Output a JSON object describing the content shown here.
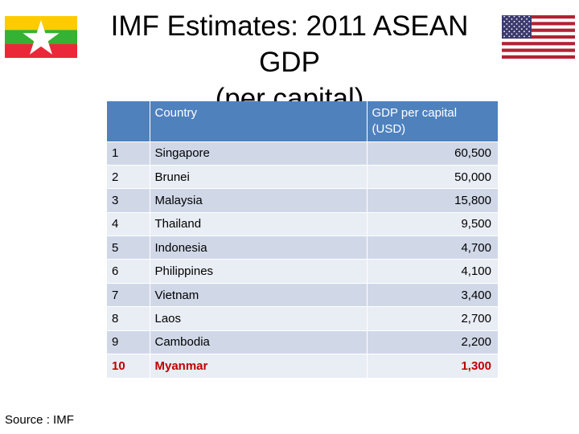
{
  "title_lines": [
    "IMF Estimates: 2011 ASEAN GDP",
    "(per capital)"
  ],
  "table": {
    "headers": [
      "",
      "Country",
      "GDP per capital\n(USD)"
    ],
    "header_gdp_line1": "GDP per capital",
    "header_gdp_line2": "(USD)",
    "rows": [
      {
        "rank": "1",
        "country": "Singapore",
        "gdp": "60,500"
      },
      {
        "rank": "2",
        "country": "Brunei",
        "gdp": "50,000"
      },
      {
        "rank": "3",
        "country": "Malaysia",
        "gdp": "15,800"
      },
      {
        "rank": "4",
        "country": "Thailand",
        "gdp": "9,500"
      },
      {
        "rank": "5",
        "country": "Indonesia",
        "gdp": "4,700"
      },
      {
        "rank": "6",
        "country": "Philippines",
        "gdp": "4,100"
      },
      {
        "rank": "7",
        "country": "Vietnam",
        "gdp": "3,400"
      },
      {
        "rank": "8",
        "country": "Laos",
        "gdp": "2,700"
      },
      {
        "rank": "9",
        "country": "Cambodia",
        "gdp": "2,200"
      },
      {
        "rank": "10",
        "country": "Myanmar",
        "gdp": "1,300"
      }
    ],
    "highlight_row": 9,
    "highlight_color": "#c00000",
    "header_color": "#4f81bd"
  },
  "source": "Source : IMF",
  "icons": {
    "left_flag": "myanmar-flag-icon",
    "right_flag": "usa-flag-icon"
  }
}
